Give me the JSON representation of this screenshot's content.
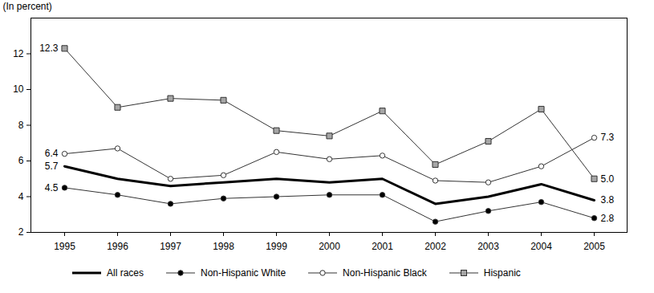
{
  "chart_data": {
    "type": "line",
    "ylabel": "(In percent)",
    "x": [
      1995,
      1996,
      1997,
      1998,
      1999,
      2000,
      2001,
      2002,
      2003,
      2004,
      2005
    ],
    "ylim": [
      2,
      14
    ],
    "yticks": [
      2,
      4,
      6,
      8,
      10,
      12
    ],
    "grid": false,
    "legend": "bottom",
    "series": [
      {
        "name": "All races",
        "color": "#000000",
        "marker": "none",
        "line_style": "bold",
        "values": [
          5.7,
          5.0,
          4.6,
          4.8,
          5.0,
          4.8,
          5.0,
          3.6,
          4.0,
          4.7,
          3.8
        ],
        "value_labels": [
          "5.7",
          null,
          null,
          null,
          null,
          null,
          null,
          null,
          null,
          null,
          "3.8"
        ]
      },
      {
        "name": "Non-Hispanic White",
        "color": "#000000",
        "marker": "circle",
        "line_style": "solid",
        "values": [
          4.5,
          4.1,
          3.6,
          3.9,
          4.0,
          4.1,
          4.1,
          2.6,
          3.2,
          3.7,
          2.8
        ],
        "value_labels": [
          "4.5",
          null,
          null,
          null,
          null,
          null,
          null,
          null,
          null,
          null,
          "2.8"
        ]
      },
      {
        "name": "Non-Hispanic Black",
        "color": "#000000",
        "marker": "open_circle",
        "line_style": "solid",
        "values": [
          6.4,
          6.7,
          5.0,
          5.2,
          6.5,
          6.1,
          6.3,
          4.9,
          4.8,
          5.7,
          7.3
        ],
        "value_labels": [
          "6.4",
          null,
          null,
          null,
          null,
          null,
          null,
          null,
          null,
          null,
          "7.3"
        ]
      },
      {
        "name": "Hispanic",
        "color": "#a6a6a6",
        "marker": "square",
        "line_style": "solid",
        "values": [
          12.3,
          9.0,
          9.5,
          9.4,
          7.7,
          7.4,
          8.8,
          5.8,
          7.1,
          8.9,
          5.0
        ],
        "value_labels": [
          "12.3",
          null,
          null,
          null,
          null,
          null,
          null,
          null,
          null,
          null,
          "5.0"
        ]
      }
    ]
  }
}
